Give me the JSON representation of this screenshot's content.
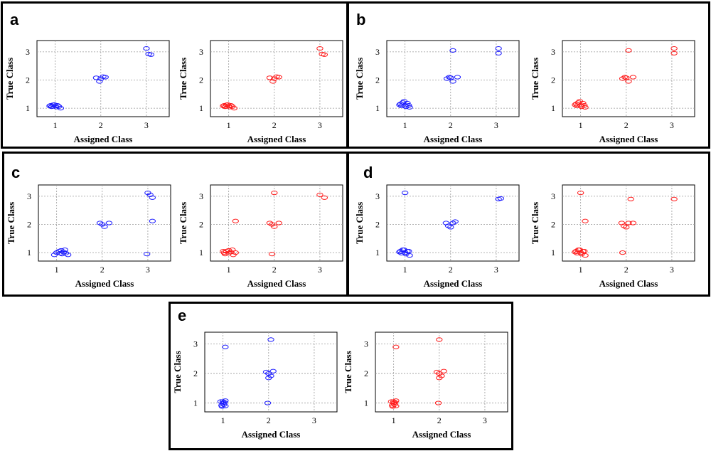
{
  "figure": {
    "axis_labels": {
      "x": "Assigned Class",
      "y": "True Class"
    },
    "colors": {
      "blue": "#1a1aff",
      "red": "#ff1a1a",
      "grid": "#9a9a9a"
    }
  },
  "chart_data": [
    {
      "panel": "a",
      "charts": [
        {
          "type": "scatter",
          "series_color": "blue",
          "xlabel": "Assigned Class",
          "ylabel": "True Class",
          "xlim": [
            0.6,
            3.5
          ],
          "ylim": [
            0.7,
            3.4
          ],
          "xticks": [
            1,
            2,
            3
          ],
          "yticks": [
            1,
            2,
            3
          ],
          "points": [
            [
              0.9,
              1.1
            ],
            [
              0.95,
              1.12
            ],
            [
              1.0,
              1.08
            ],
            [
              1.05,
              1.1
            ],
            [
              0.92,
              1.05
            ],
            [
              0.98,
              1.13
            ],
            [
              1.02,
              1.04
            ],
            [
              1.08,
              1.06
            ],
            [
              1.12,
              1.0
            ],
            [
              0.88,
              1.08
            ],
            [
              1.9,
              2.08
            ],
            [
              2.0,
              2.05
            ],
            [
              2.05,
              2.12
            ],
            [
              2.1,
              2.1
            ],
            [
              1.97,
              1.95
            ],
            [
              3.0,
              3.12
            ],
            [
              3.05,
              2.92
            ],
            [
              3.1,
              2.9
            ]
          ]
        },
        {
          "type": "scatter",
          "series_color": "red",
          "xlabel": "Assigned Class",
          "ylabel": "True Class",
          "xlim": [
            0.6,
            3.5
          ],
          "ylim": [
            0.7,
            3.4
          ],
          "xticks": [
            1,
            2,
            3
          ],
          "yticks": [
            1,
            2,
            3
          ],
          "points": [
            [
              0.9,
              1.1
            ],
            [
              0.95,
              1.12
            ],
            [
              1.0,
              1.08
            ],
            [
              1.05,
              1.1
            ],
            [
              0.92,
              1.05
            ],
            [
              0.98,
              1.13
            ],
            [
              1.02,
              1.04
            ],
            [
              1.08,
              1.06
            ],
            [
              1.12,
              1.0
            ],
            [
              0.88,
              1.08
            ],
            [
              1.9,
              2.08
            ],
            [
              2.0,
              2.05
            ],
            [
              2.05,
              2.12
            ],
            [
              2.1,
              2.1
            ],
            [
              1.97,
              1.95
            ],
            [
              3.0,
              3.12
            ],
            [
              3.05,
              2.92
            ],
            [
              3.1,
              2.9
            ]
          ]
        }
      ]
    },
    {
      "panel": "b",
      "charts": [
        {
          "type": "scatter",
          "series_color": "blue",
          "xlabel": "Assigned Class",
          "ylabel": "True Class",
          "xlim": [
            0.6,
            3.5
          ],
          "ylim": [
            0.7,
            3.4
          ],
          "xticks": [
            1,
            2,
            3
          ],
          "yticks": [
            1,
            2,
            3
          ],
          "points": [
            [
              0.9,
              1.15
            ],
            [
              0.95,
              1.2
            ],
            [
              1.0,
              1.1
            ],
            [
              1.05,
              1.18
            ],
            [
              0.92,
              1.08
            ],
            [
              0.98,
              1.25
            ],
            [
              1.02,
              1.05
            ],
            [
              1.08,
              1.1
            ],
            [
              1.1,
              1.03
            ],
            [
              0.88,
              1.12
            ],
            [
              1.92,
              2.05
            ],
            [
              1.97,
              2.1
            ],
            [
              2.0,
              2.08
            ],
            [
              2.05,
              1.95
            ],
            [
              2.15,
              2.1
            ],
            [
              2.05,
              3.05
            ],
            [
              3.05,
              3.12
            ],
            [
              3.05,
              2.95
            ]
          ]
        },
        {
          "type": "scatter",
          "series_color": "red",
          "xlabel": "Assigned Class",
          "ylabel": "True Class",
          "xlim": [
            0.6,
            3.5
          ],
          "ylim": [
            0.7,
            3.4
          ],
          "xticks": [
            1,
            2,
            3
          ],
          "yticks": [
            1,
            2,
            3
          ],
          "points": [
            [
              0.9,
              1.15
            ],
            [
              0.95,
              1.2
            ],
            [
              1.0,
              1.1
            ],
            [
              1.05,
              1.18
            ],
            [
              0.92,
              1.08
            ],
            [
              0.98,
              1.25
            ],
            [
              1.02,
              1.05
            ],
            [
              1.08,
              1.1
            ],
            [
              1.1,
              1.03
            ],
            [
              0.88,
              1.12
            ],
            [
              1.92,
              2.05
            ],
            [
              1.97,
              2.1
            ],
            [
              2.0,
              2.08
            ],
            [
              2.05,
              1.95
            ],
            [
              2.15,
              2.1
            ],
            [
              2.05,
              3.05
            ],
            [
              3.05,
              3.12
            ],
            [
              3.05,
              2.95
            ]
          ]
        }
      ]
    },
    {
      "panel": "c",
      "charts": [
        {
          "type": "scatter",
          "series_color": "blue",
          "xlabel": "Assigned Class",
          "ylabel": "True Class",
          "xlim": [
            0.6,
            3.5
          ],
          "ylim": [
            0.7,
            3.4
          ],
          "xticks": [
            1,
            2,
            3
          ],
          "yticks": [
            1,
            2,
            3
          ],
          "points": [
            [
              1.05,
              1.05
            ],
            [
              1.1,
              1.08
            ],
            [
              1.15,
              1.02
            ],
            [
              1.2,
              0.98
            ],
            [
              1.25,
              0.92
            ],
            [
              1.08,
              0.98
            ],
            [
              1.0,
              1.0
            ],
            [
              1.12,
              0.95
            ],
            [
              0.95,
              0.92
            ],
            [
              1.18,
              1.1
            ],
            [
              1.95,
              2.05
            ],
            [
              2.0,
              2.0
            ],
            [
              2.05,
              1.92
            ],
            [
              2.15,
              2.05
            ],
            [
              3.0,
              3.12
            ],
            [
              3.05,
              3.05
            ],
            [
              3.1,
              2.95
            ],
            [
              3.1,
              2.12
            ],
            [
              2.98,
              0.95
            ]
          ]
        },
        {
          "type": "scatter",
          "series_color": "red",
          "xlabel": "Assigned Class",
          "ylabel": "True Class",
          "xlim": [
            0.6,
            3.5
          ],
          "ylim": [
            0.7,
            3.4
          ],
          "xticks": [
            1,
            2,
            3
          ],
          "yticks": [
            1,
            2,
            3
          ],
          "points": [
            [
              0.9,
              1.0
            ],
            [
              0.95,
              1.05
            ],
            [
              1.0,
              0.98
            ],
            [
              1.05,
              1.02
            ],
            [
              1.1,
              0.92
            ],
            [
              0.92,
              0.95
            ],
            [
              1.0,
              1.08
            ],
            [
              1.08,
              1.1
            ],
            [
              1.15,
              1.0
            ],
            [
              0.88,
              1.05
            ],
            [
              1.15,
              2.12
            ],
            [
              1.9,
              2.05
            ],
            [
              1.95,
              2.0
            ],
            [
              2.0,
              1.92
            ],
            [
              2.1,
              2.05
            ],
            [
              2.0,
              3.12
            ],
            [
              1.95,
              0.95
            ],
            [
              3.0,
              3.05
            ],
            [
              3.1,
              2.95
            ]
          ]
        }
      ]
    },
    {
      "panel": "d",
      "charts": [
        {
          "type": "scatter",
          "series_color": "blue",
          "xlabel": "Assigned Class",
          "ylabel": "True Class",
          "xlim": [
            0.6,
            3.5
          ],
          "ylim": [
            0.7,
            3.4
          ],
          "xticks": [
            1,
            2,
            3
          ],
          "yticks": [
            1,
            2,
            3
          ],
          "points": [
            [
              0.9,
              1.05
            ],
            [
              0.95,
              1.1
            ],
            [
              1.0,
              1.0
            ],
            [
              1.05,
              1.05
            ],
            [
              0.92,
              0.98
            ],
            [
              0.98,
              1.1
            ],
            [
              1.02,
              0.95
            ],
            [
              1.08,
              1.05
            ],
            [
              1.1,
              0.9
            ],
            [
              0.88,
              1.02
            ],
            [
              1.0,
              3.12
            ],
            [
              1.9,
              2.05
            ],
            [
              1.95,
              1.95
            ],
            [
              2.05,
              2.05
            ],
            [
              2.1,
              2.1
            ],
            [
              2.0,
              1.9
            ],
            [
              3.05,
              2.9
            ],
            [
              3.1,
              2.92
            ]
          ]
        },
        {
          "type": "scatter",
          "series_color": "red",
          "xlabel": "Assigned Class",
          "ylabel": "True Class",
          "xlim": [
            0.6,
            3.5
          ],
          "ylim": [
            0.7,
            3.4
          ],
          "xticks": [
            1,
            2,
            3
          ],
          "yticks": [
            1,
            2,
            3
          ],
          "points": [
            [
              0.9,
              1.05
            ],
            [
              0.95,
              1.1
            ],
            [
              1.0,
              1.0
            ],
            [
              1.05,
              1.05
            ],
            [
              0.92,
              0.98
            ],
            [
              0.98,
              1.1
            ],
            [
              1.02,
              0.95
            ],
            [
              1.08,
              1.05
            ],
            [
              1.1,
              0.9
            ],
            [
              0.88,
              1.02
            ],
            [
              1.0,
              3.12
            ],
            [
              1.1,
              2.12
            ],
            [
              1.9,
              2.05
            ],
            [
              1.95,
              1.95
            ],
            [
              2.05,
              2.05
            ],
            [
              2.15,
              2.05
            ],
            [
              2.0,
              1.9
            ],
            [
              1.92,
              1.0
            ],
            [
              2.1,
              2.9
            ],
            [
              3.05,
              2.9
            ]
          ]
        }
      ]
    },
    {
      "panel": "e",
      "charts": [
        {
          "type": "scatter",
          "series_color": "blue",
          "xlabel": "Assigned Class",
          "ylabel": "True Class",
          "xlim": [
            0.6,
            3.5
          ],
          "ylim": [
            0.7,
            3.4
          ],
          "xticks": [
            1,
            2,
            3
          ],
          "yticks": [
            1,
            2,
            3
          ],
          "points": [
            [
              0.95,
              1.05
            ],
            [
              1.0,
              1.0
            ],
            [
              1.02,
              0.95
            ],
            [
              1.05,
              1.08
            ],
            [
              0.97,
              0.92
            ],
            [
              1.03,
              1.02
            ],
            [
              0.98,
              0.88
            ],
            [
              1.05,
              0.9
            ],
            [
              1.0,
              1.05
            ],
            [
              1.05,
              2.9
            ],
            [
              1.95,
              2.05
            ],
            [
              2.0,
              2.0
            ],
            [
              2.05,
              1.92
            ],
            [
              2.1,
              2.08
            ],
            [
              2.0,
              1.85
            ],
            [
              2.05,
              3.15
            ],
            [
              1.98,
              1.0
            ]
          ]
        },
        {
          "type": "scatter",
          "series_color": "red",
          "xlabel": "Assigned Class",
          "ylabel": "True Class",
          "xlim": [
            0.6,
            3.5
          ],
          "ylim": [
            0.7,
            3.4
          ],
          "xticks": [
            1,
            2,
            3
          ],
          "yticks": [
            1,
            2,
            3
          ],
          "points": [
            [
              0.95,
              1.05
            ],
            [
              1.0,
              1.0
            ],
            [
              1.02,
              0.95
            ],
            [
              1.05,
              1.08
            ],
            [
              0.97,
              0.92
            ],
            [
              1.03,
              1.02
            ],
            [
              0.98,
              0.88
            ],
            [
              1.05,
              0.9
            ],
            [
              1.0,
              1.05
            ],
            [
              1.05,
              2.9
            ],
            [
              1.95,
              2.05
            ],
            [
              2.0,
              2.0
            ],
            [
              2.05,
              1.92
            ],
            [
              2.1,
              2.08
            ],
            [
              2.0,
              1.85
            ],
            [
              2.0,
              3.15
            ],
            [
              1.98,
              1.0
            ]
          ]
        }
      ]
    }
  ]
}
